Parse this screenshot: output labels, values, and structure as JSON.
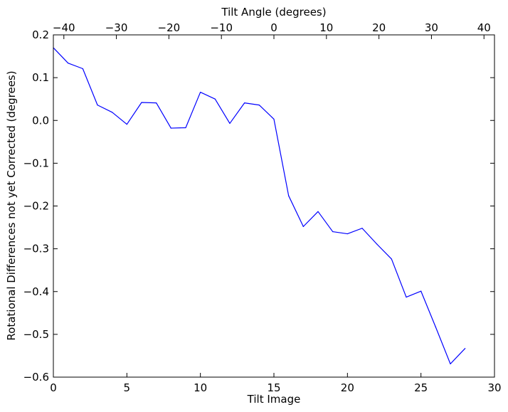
{
  "chart_data": {
    "type": "line",
    "title": "",
    "xlabel": "Tilt Image",
    "ylabel": "Rotational Differences not yet Corrected (degrees)",
    "top_xlabel": "Tilt Angle (degrees)",
    "xlim": [
      0,
      30
    ],
    "ylim": [
      -0.6,
      0.2
    ],
    "top_xlim": [
      -42,
      42
    ],
    "x_ticks": [
      0,
      5,
      10,
      15,
      20,
      25,
      30
    ],
    "x_tick_labels": [
      "0",
      "5",
      "10",
      "15",
      "20",
      "25",
      "30"
    ],
    "y_ticks": [
      0.2,
      0.1,
      0.0,
      -0.1,
      -0.2,
      -0.3,
      -0.4,
      -0.5,
      -0.6
    ],
    "y_tick_labels": [
      "0.2",
      "0.1",
      "0.0",
      "−0.1",
      "−0.2",
      "−0.3",
      "−0.4",
      "−0.5",
      "−0.6"
    ],
    "top_ticks": [
      -40,
      -30,
      -20,
      -10,
      0,
      10,
      20,
      30,
      40
    ],
    "top_tick_labels": [
      "−40",
      "−30",
      "−20",
      "−10",
      "0",
      "10",
      "20",
      "30",
      "40"
    ],
    "grid": false,
    "legend": "none",
    "series": [
      {
        "color": "#0000ff",
        "x": [
          0,
          1,
          2,
          3,
          4,
          5,
          6,
          7,
          8,
          9,
          10,
          11,
          12,
          13,
          14,
          15,
          16,
          17,
          18,
          19,
          20,
          21,
          22,
          23,
          24,
          25,
          26,
          27,
          28
        ],
        "y": [
          0.17,
          0.134,
          0.121,
          0.036,
          0.019,
          -0.009,
          0.042,
          0.041,
          -0.018,
          -0.017,
          0.066,
          0.05,
          -0.007,
          0.041,
          0.036,
          0.003,
          -0.176,
          -0.248,
          -0.213,
          -0.26,
          -0.265,
          -0.252,
          -0.289,
          -0.324,
          -0.413,
          -0.399,
          -0.483,
          -0.569,
          -0.533
        ]
      }
    ]
  }
}
